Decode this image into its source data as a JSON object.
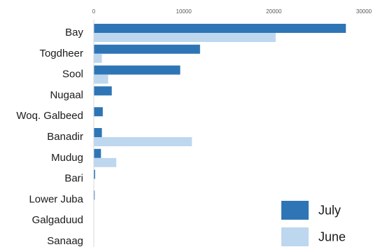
{
  "chart_data": {
    "type": "bar",
    "orientation": "horizontal",
    "title": "",
    "xlabel": "",
    "ylabel": "",
    "xlim": [
      0,
      30000
    ],
    "x_ticks": [
      0,
      10000,
      20000,
      30000
    ],
    "x_tick_labels": [
      "0",
      "10000",
      "20000",
      "30000"
    ],
    "x_axis_position": "top",
    "grid": false,
    "legend_position": "bottom-right",
    "categories": [
      "Bay",
      "Togdheer",
      "Sool",
      "Nugaal",
      "Woq. Galbeed",
      "Banadir",
      "Mudug",
      "Bari",
      "Lower Juba",
      "Galgaduud",
      "Sanaag"
    ],
    "series": [
      {
        "name": "July",
        "color": "#2e75b6",
        "values": [
          28000,
          11800,
          9600,
          2000,
          1000,
          900,
          800,
          150,
          100,
          20,
          10
        ]
      },
      {
        "name": "June",
        "color": "#bdd7ee",
        "values": [
          20200,
          900,
          1600,
          0,
          0,
          10900,
          2500,
          0,
          0,
          0,
          0
        ]
      }
    ]
  }
}
